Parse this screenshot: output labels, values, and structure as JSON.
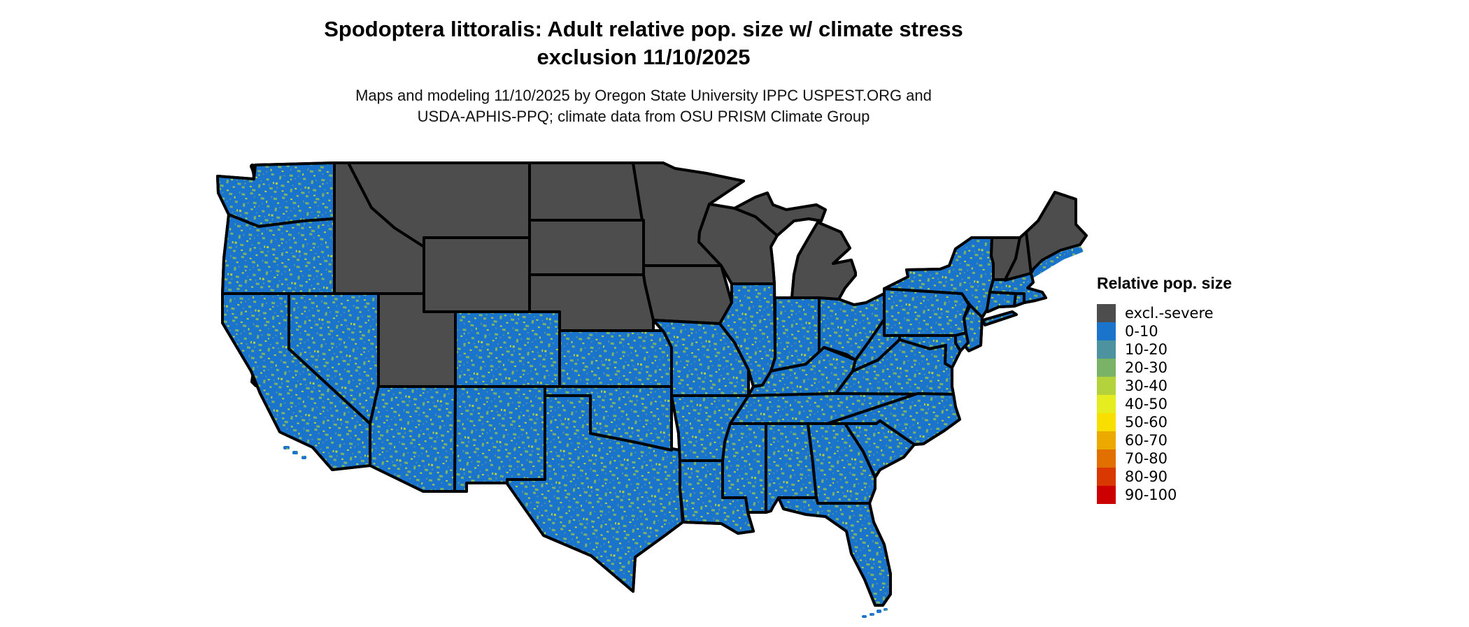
{
  "header": {
    "title_line1": "Spodoptera littoralis: Adult relative pop. size w/ climate stress",
    "title_line2": "exclusion 11/10/2025",
    "subtitle_line1": "Maps and modeling 11/10/2025 by Oregon State University IPPC USPEST.ORG and",
    "subtitle_line2": "USDA-APHIS-PPQ; climate data from OSU PRISM Climate Group"
  },
  "legend": {
    "title": "Relative pop. size",
    "items": [
      {
        "label": "excl.-severe",
        "color": "#4d4d4d"
      },
      {
        "label": "0-10",
        "color": "#1b74cc"
      },
      {
        "label": "10-20",
        "color": "#4d929f"
      },
      {
        "label": "20-30",
        "color": "#7ab267"
      },
      {
        "label": "30-40",
        "color": "#b4d23b"
      },
      {
        "label": "40-50",
        "color": "#e5ec20"
      },
      {
        "label": "50-60",
        "color": "#f8df00"
      },
      {
        "label": "60-70",
        "color": "#ecaa00"
      },
      {
        "label": "70-80",
        "color": "#e17000"
      },
      {
        "label": "80-90",
        "color": "#d93900"
      },
      {
        "label": "90-100",
        "color": "#cc0000"
      }
    ]
  },
  "map": {
    "excluded_color": "#4d4d4d",
    "base_color": "#1b74cc",
    "speckle_colors": [
      "#4d929f",
      "#7ab267",
      "#b4d23b"
    ],
    "border_color": "#000000",
    "water_color": "#ffffff"
  }
}
